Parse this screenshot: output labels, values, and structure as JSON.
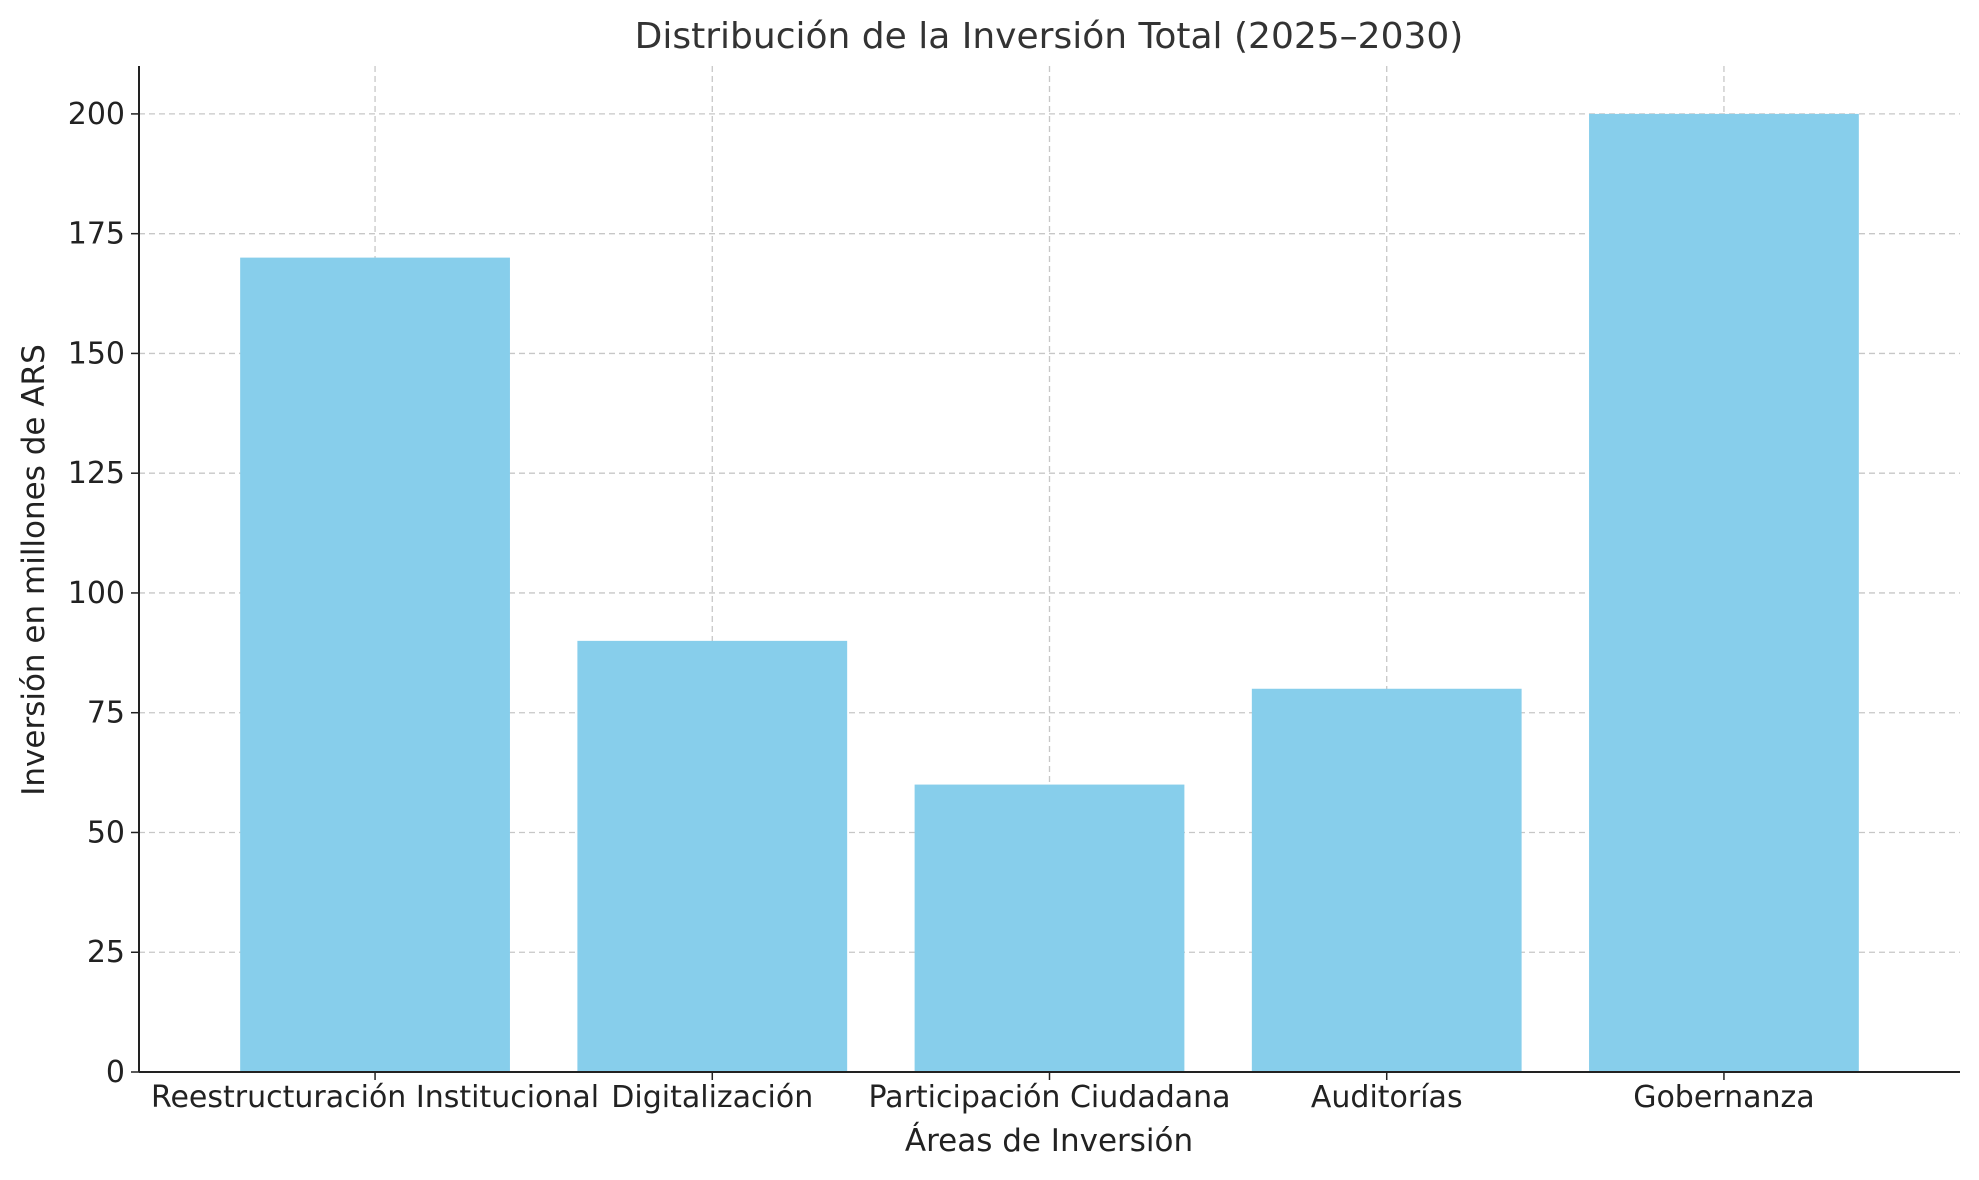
{
  "chart_data": {
    "type": "bar",
    "title": "Distribución de la Inversión Total (2025–2030)",
    "xlabel": "Áreas de Inversión",
    "ylabel": "Inversión en millones de ARS",
    "categories": [
      "Reestructuración Institucional",
      "Digitalización",
      "Participación Ciudadana",
      "Auditorías",
      "Gobernanza"
    ],
    "values": [
      170,
      90,
      60,
      80,
      200
    ],
    "ylim": [
      0,
      210
    ],
    "yticks": [
      0,
      25,
      50,
      75,
      100,
      125,
      150,
      175,
      200
    ],
    "grid": true,
    "colors": {
      "bar": "#87CEEB",
      "grid": "#c7c7c7",
      "axis": "#222222"
    }
  }
}
